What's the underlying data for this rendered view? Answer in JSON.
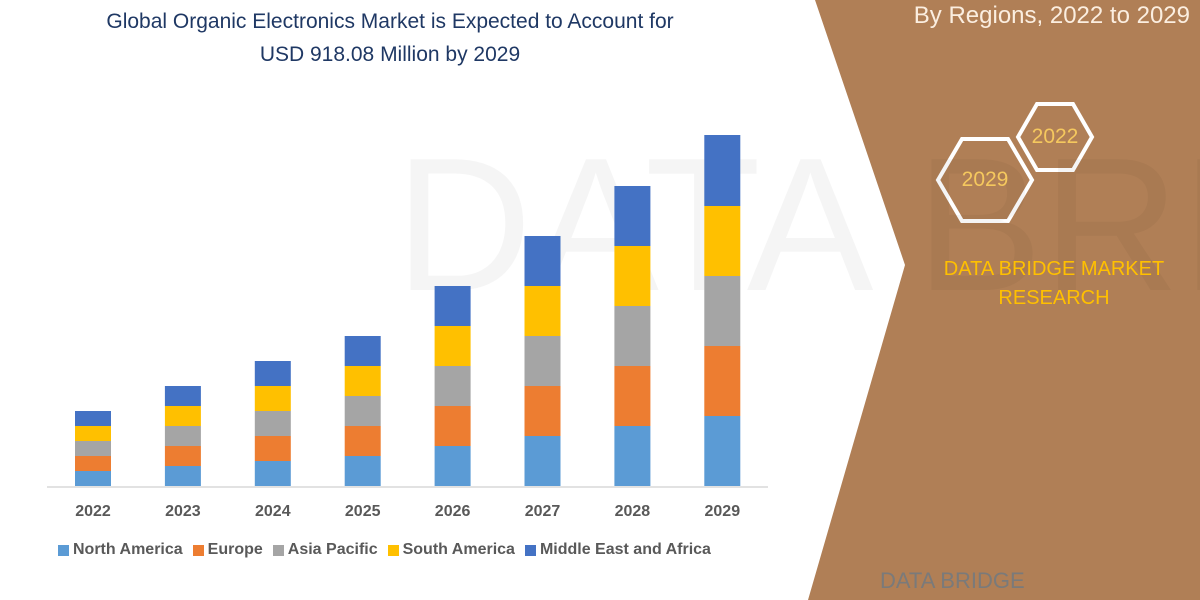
{
  "header": {
    "title_line1": "Global Organic Electronics Market is Expected to Account for",
    "title_line2": "USD 918.08 Million by 2029",
    "subtitle": "By Regions, 2022 to 2029"
  },
  "side": {
    "hex_2022": "2022",
    "hex_2029": "2029",
    "brand_line1": "DATA BRIDGE MARKET",
    "brand_line2": "RESEARCH",
    "logo_text": "DATA BRIDGE"
  },
  "colors": {
    "panel": "#b07f56",
    "north_america": "#5b9bd5",
    "europe": "#ed7d31",
    "asia_pacific": "#a5a5a5",
    "south_america": "#ffc000",
    "mea": "#4472c4"
  },
  "chart_data": {
    "type": "bar",
    "stacked": true,
    "categories": [
      "2022",
      "2023",
      "2024",
      "2025",
      "2026",
      "2027",
      "2028",
      "2029"
    ],
    "series": [
      {
        "name": "North America",
        "values": [
          15,
          20,
          25,
          30,
          40,
          50,
          60,
          70
        ]
      },
      {
        "name": "Europe",
        "values": [
          15,
          20,
          25,
          30,
          40,
          50,
          60,
          70
        ]
      },
      {
        "name": "Asia Pacific",
        "values": [
          15,
          20,
          25,
          30,
          40,
          50,
          60,
          70
        ]
      },
      {
        "name": "South America",
        "values": [
          15,
          20,
          25,
          30,
          40,
          50,
          60,
          70
        ]
      },
      {
        "name": "Middle East and Africa",
        "values": [
          15,
          20,
          25,
          30,
          40,
          50,
          60,
          71
        ]
      }
    ],
    "y_axis_visible": false,
    "grid": false,
    "legend": "bottom"
  }
}
